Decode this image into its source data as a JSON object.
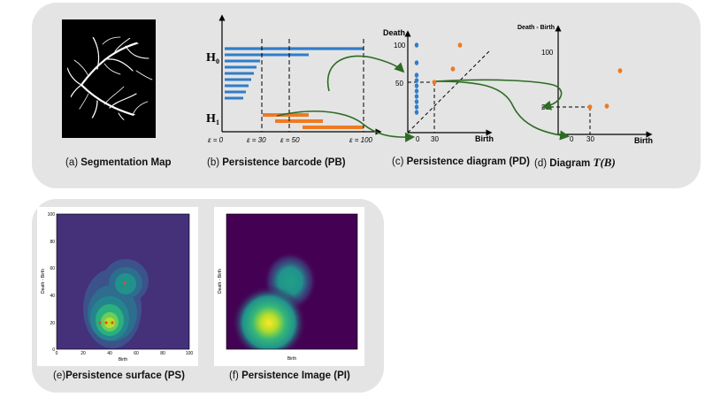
{
  "captions": {
    "a": {
      "prefix": "(a)",
      "title": "Segmentation Map"
    },
    "b": {
      "prefix": "(b)",
      "title": "Persistence barcode (PB)"
    },
    "c": {
      "prefix": "(c)",
      "title": "Persistence diagram (PD)"
    },
    "d": {
      "prefix": "(d)",
      "title": "Diagram",
      "math": "T(B)"
    },
    "e": {
      "prefix": "(e)",
      "title": "Persistence surface (PS)"
    },
    "f": {
      "prefix": "(f)",
      "title": "Persistence Image (PI)"
    }
  },
  "barcode": {
    "h0_label": "H",
    "h0_sub": "0",
    "h1_label": "H",
    "h1_sub": "1",
    "eps_labels": [
      "ε = 0",
      "ε = 30",
      "ε = 50",
      "ε = 100"
    ]
  },
  "pd": {
    "y_label": "Death",
    "x_label": "Birth",
    "y_ticks": [
      "100",
      "50"
    ],
    "x_ticks": [
      "0",
      "30"
    ]
  },
  "tb": {
    "y_label": "Death - Birth",
    "x_label": "Birth",
    "y_ticks": [
      "100",
      "20"
    ],
    "x_ticks": [
      "0",
      "30"
    ]
  },
  "ps": {
    "y_label": "Death - Birth",
    "x_label": "Birth",
    "y_ticks": [
      "0",
      "20",
      "40",
      "60",
      "80",
      "100"
    ],
    "x_ticks": [
      "0",
      "20",
      "40",
      "60",
      "80",
      "100"
    ]
  },
  "pi": {
    "y_label": "Death - Birth",
    "x_label": "Birth"
  },
  "colors": {
    "h0": "#2f7dc9",
    "h1": "#ef7a21",
    "arrow": "#2e6b24",
    "viridis_bg": "#45307a"
  }
}
